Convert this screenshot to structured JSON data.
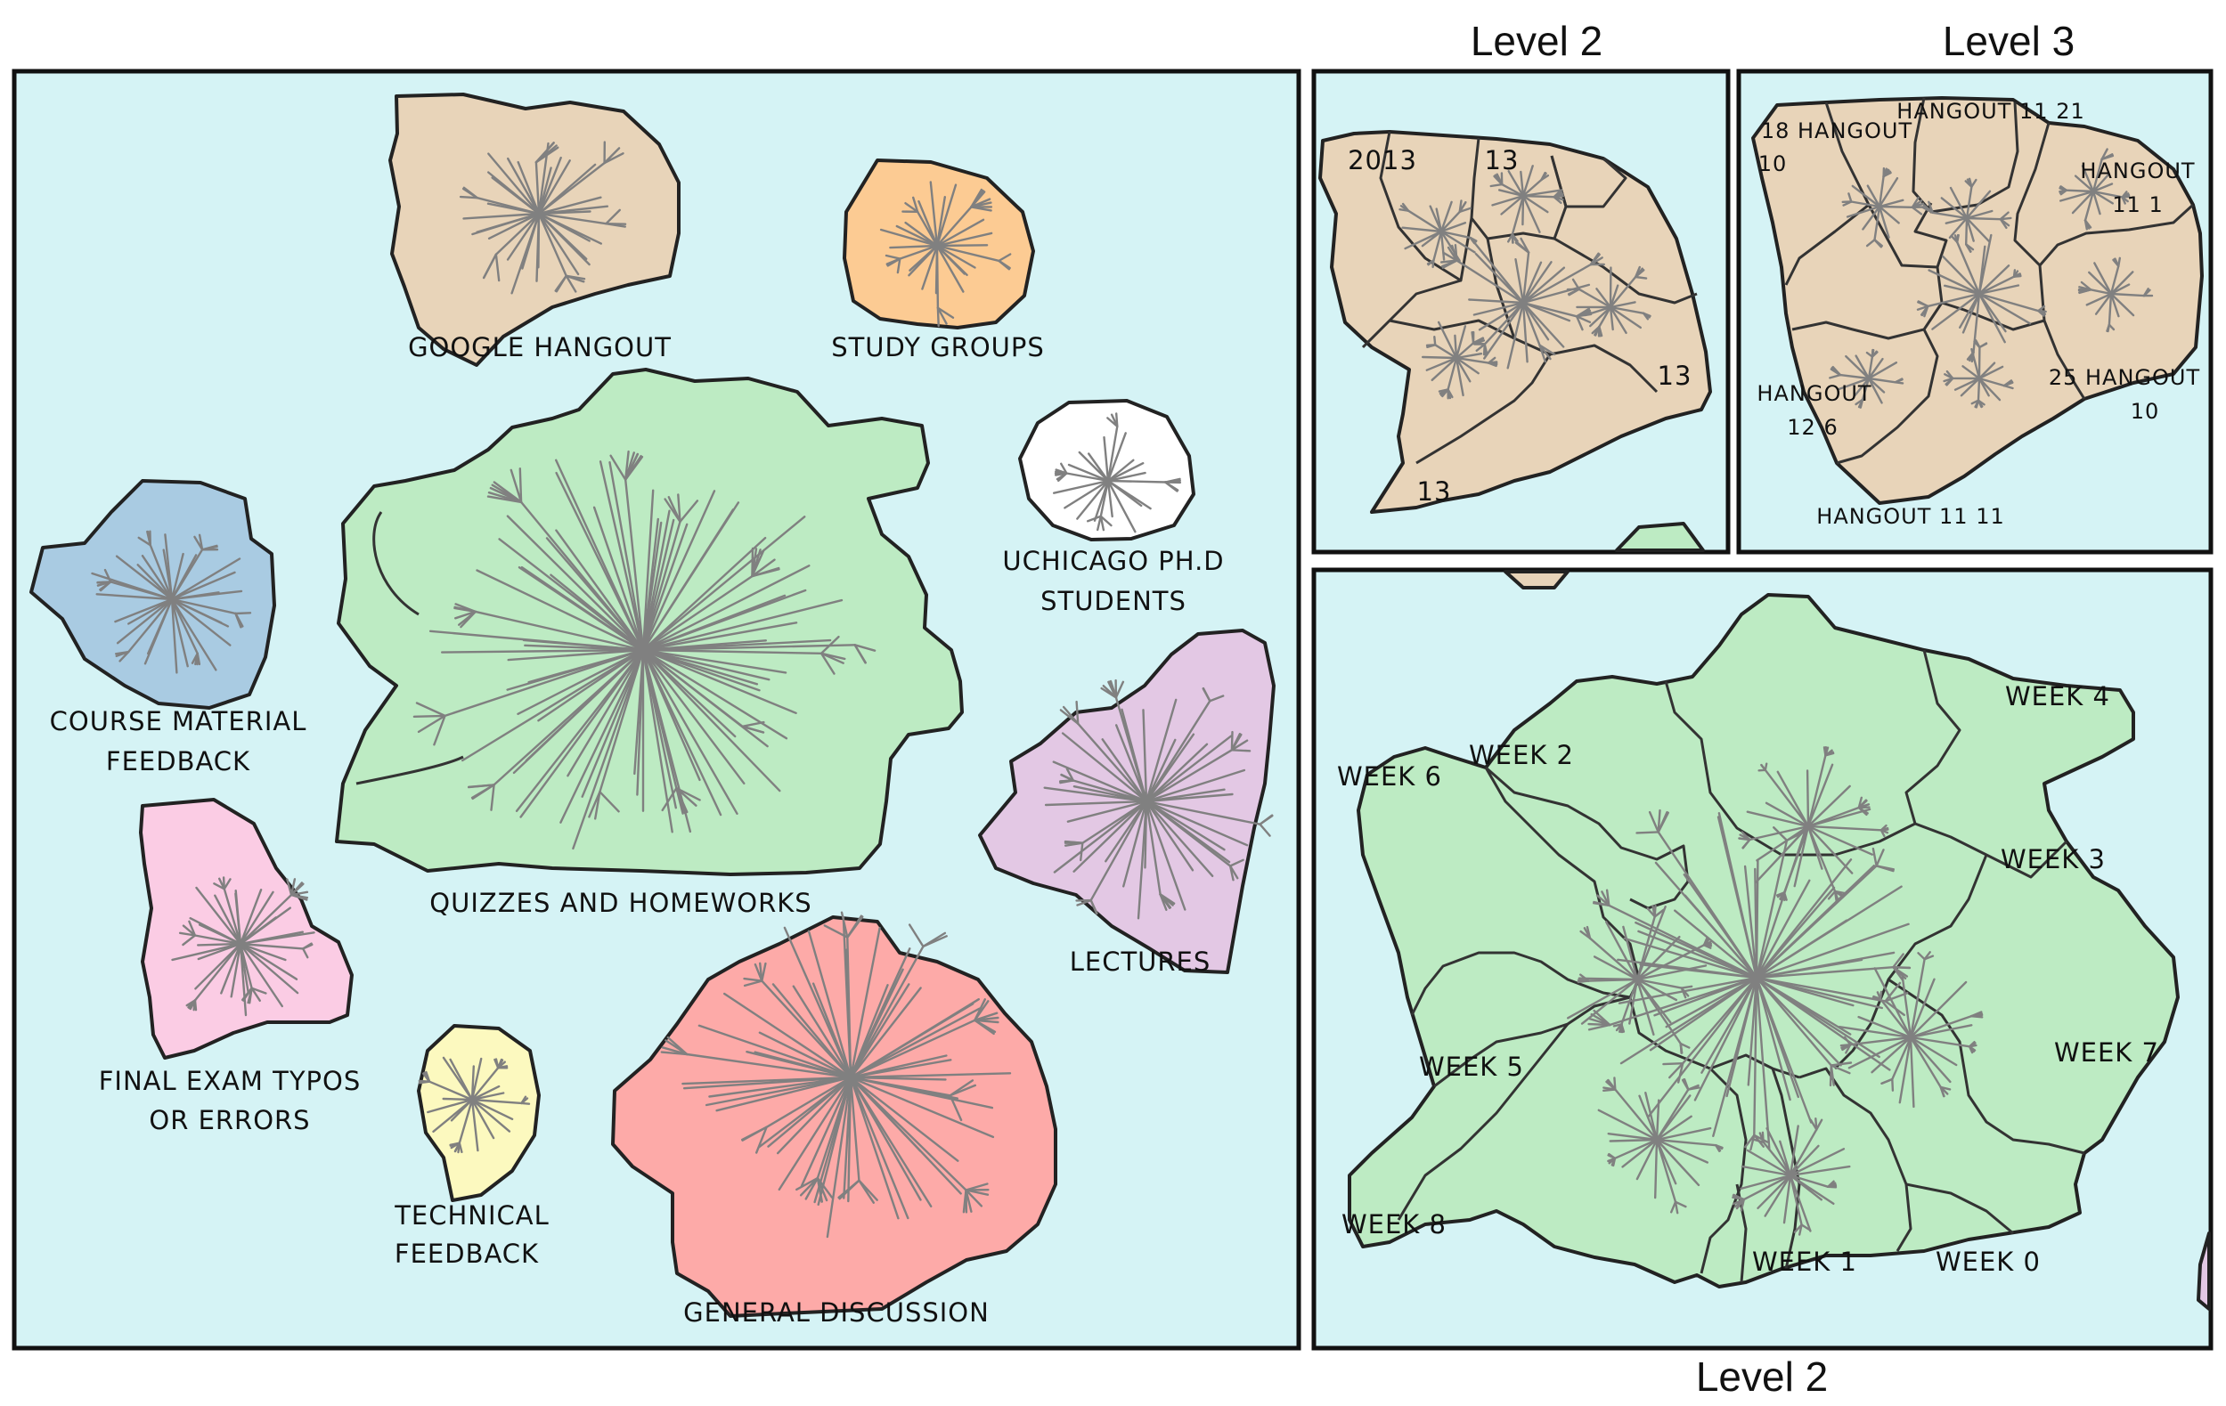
{
  "colors": {
    "background": "#d5f3f5",
    "google_hangout": "#e8d4b9",
    "study_groups": "#fccb93",
    "quizzes": "#bdebc3",
    "course_material": "#a9cbe2",
    "uchicago": "#ffffff",
    "lectures": "#e3c8e4",
    "final_exam": "#fbcce4",
    "technical": "#fcf9bf",
    "general": "#fdaaa8",
    "branch": "#808080"
  },
  "main_map": {
    "clusters": [
      {
        "id": "google-hangout",
        "lines": [
          "GOOGLE HANGOUT"
        ]
      },
      {
        "id": "study-groups",
        "lines": [
          "STUDY GROUPS"
        ]
      },
      {
        "id": "uchicago",
        "lines": [
          "UCHICAGO PH.D",
          "STUDENTS"
        ]
      },
      {
        "id": "course-material",
        "lines": [
          "COURSE MATERIAL",
          "FEEDBACK"
        ]
      },
      {
        "id": "quizzes",
        "lines": [
          "QUIZZES AND HOMEWORKS"
        ]
      },
      {
        "id": "lectures",
        "lines": [
          "LECTURES"
        ]
      },
      {
        "id": "final-exam",
        "lines": [
          "FINAL EXAM TYPOS",
          "OR ERRORS"
        ]
      },
      {
        "id": "technical",
        "lines": [
          "TECHNICAL",
          "FEEDBACK"
        ]
      },
      {
        "id": "general",
        "lines": [
          "GENERAL DISCUSSION"
        ]
      }
    ]
  },
  "inset_level2_top": {
    "title": "Level 2",
    "labels": [
      "2013",
      "13",
      "13",
      "13"
    ]
  },
  "inset_level3": {
    "title": "Level 3",
    "labels": [
      {
        "l1": "18 HANGOUT",
        "l2": "10"
      },
      {
        "l1": "HANGOUT 11 21",
        "l2": ""
      },
      {
        "l1": "HANGOUT",
        "l2": "11 1"
      },
      {
        "l1": "HANGOUT",
        "l2": "12 6"
      },
      {
        "l1": "25 HANGOUT",
        "l2": "10"
      },
      {
        "l1": "HANGOUT 11 11",
        "l2": ""
      }
    ]
  },
  "inset_level2_bottom": {
    "title": "Level 2",
    "weeks": [
      "WEEK 4",
      "WEEK 2",
      "WEEK 6",
      "WEEK 3",
      "WEEK 5",
      "WEEK 7",
      "WEEK 8",
      "WEEK 1",
      "WEEK 0"
    ]
  }
}
